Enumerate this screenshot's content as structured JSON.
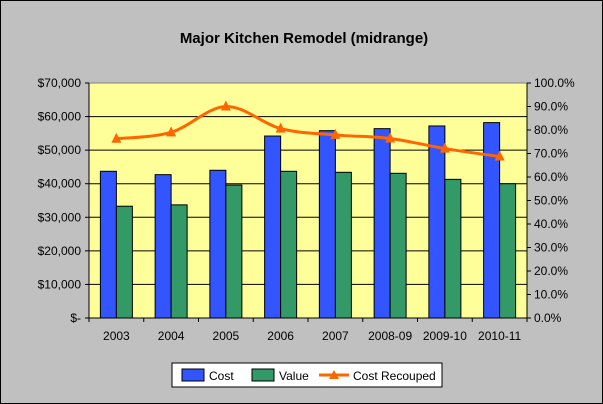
{
  "chart_data": {
    "type": "bar+line",
    "title": "Major Kitchen Remodel (midrange)",
    "categories": [
      "2003",
      "2004",
      "2005",
      "2006",
      "2007",
      "2008-09",
      "2009-10",
      "2010-11"
    ],
    "series": [
      {
        "name": "Cost",
        "type": "bar",
        "axis": "left",
        "color": "#3355ff",
        "values": [
          43700,
          42700,
          44000,
          54200,
          55800,
          56400,
          57200,
          58200
        ]
      },
      {
        "name": "Value",
        "type": "bar",
        "axis": "left",
        "color": "#339966",
        "values": [
          33300,
          33700,
          39600,
          43700,
          43400,
          43100,
          41300,
          40000
        ]
      },
      {
        "name": "Cost Recouped",
        "type": "line",
        "axis": "right",
        "color": "#ff6600",
        "marker": "triangle",
        "values": [
          76.3,
          79.0,
          90.0,
          80.6,
          77.9,
          76.4,
          72.1,
          68.7
        ]
      }
    ],
    "y_left": {
      "min": 0,
      "max": 70000,
      "step": 10000,
      "tick_labels": [
        "$-",
        "$10,000",
        "$20,000",
        "$30,000",
        "$40,000",
        "$50,000",
        "$60,000",
        "$70,000"
      ]
    },
    "y_right": {
      "min": 0,
      "max": 100,
      "step": 10,
      "tick_labels": [
        "0.0%",
        "10.0%",
        "20.0%",
        "30.0%",
        "40.0%",
        "50.0%",
        "60.0%",
        "70.0%",
        "80.0%",
        "90.0%",
        "100.0%"
      ]
    },
    "grid": true,
    "plot_background": "#ffff99",
    "legend_position": "bottom"
  }
}
